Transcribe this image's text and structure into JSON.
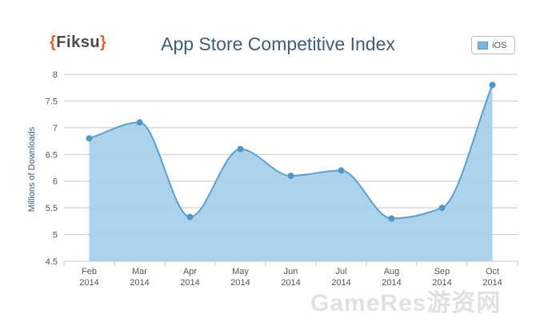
{
  "logo": {
    "left": "{",
    "text": "Fiksu",
    "right": "}"
  },
  "watermark": "GameRes游资网",
  "colors": {
    "fill": "#a9d0ea",
    "line": "#5aa0cf",
    "point": "#5296c6",
    "grid": "#c8c8c8",
    "title": "#3f5d78",
    "axis_text": "#555555",
    "ylabel": "#3f5d78"
  },
  "chart_data": {
    "type": "area",
    "title": "App Store Competitive Index",
    "ylabel": "Millions of Downloads",
    "xlabel": "",
    "categories": [
      {
        "month": "Feb",
        "year": "2014"
      },
      {
        "month": "Mar",
        "year": "2014"
      },
      {
        "month": "Apr",
        "year": "2014"
      },
      {
        "month": "May",
        "year": "2014"
      },
      {
        "month": "Jun",
        "year": "2014"
      },
      {
        "month": "Jul",
        "year": "2014"
      },
      {
        "month": "Aug",
        "year": "2014"
      },
      {
        "month": "Sep",
        "year": "2014"
      },
      {
        "month": "Oct",
        "year": "2014"
      }
    ],
    "series": [
      {
        "name": "iOS",
        "values": [
          6.8,
          7.1,
          5.33,
          6.6,
          6.1,
          6.2,
          5.3,
          5.5,
          7.8
        ]
      }
    ],
    "ylim": [
      4.5,
      8
    ],
    "yticks": [
      "4.5",
      "5",
      "5.5",
      "6",
      "6.5",
      "7",
      "7.5",
      "8"
    ],
    "grid": true,
    "legend": "top-right",
    "smooth": true
  }
}
